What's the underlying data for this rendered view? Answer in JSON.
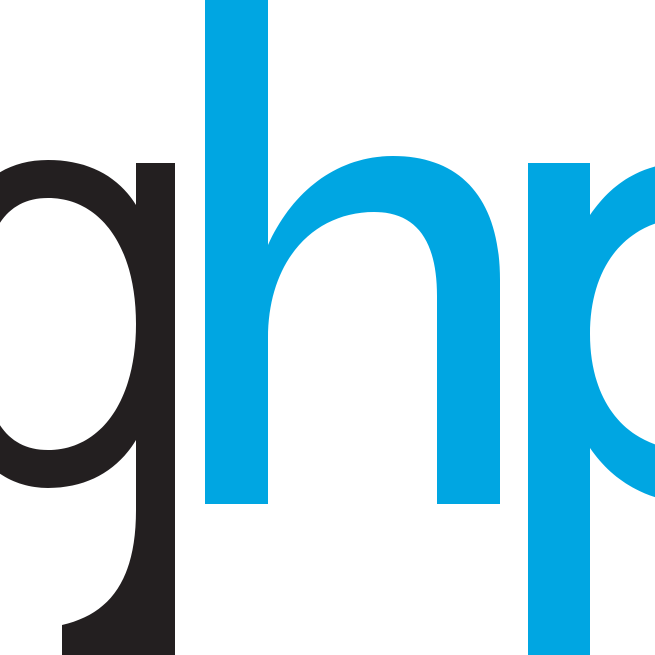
{
  "logo": {
    "text": "ghp",
    "letters": [
      {
        "char": "g",
        "color": "#231f20"
      },
      {
        "char": "h",
        "color": "#00a6e2"
      },
      {
        "char": "p",
        "color": "#00a6e2"
      }
    ]
  },
  "colors": {
    "background": "#ffffff",
    "dark": "#231f20",
    "accent": "#00a6e2"
  }
}
